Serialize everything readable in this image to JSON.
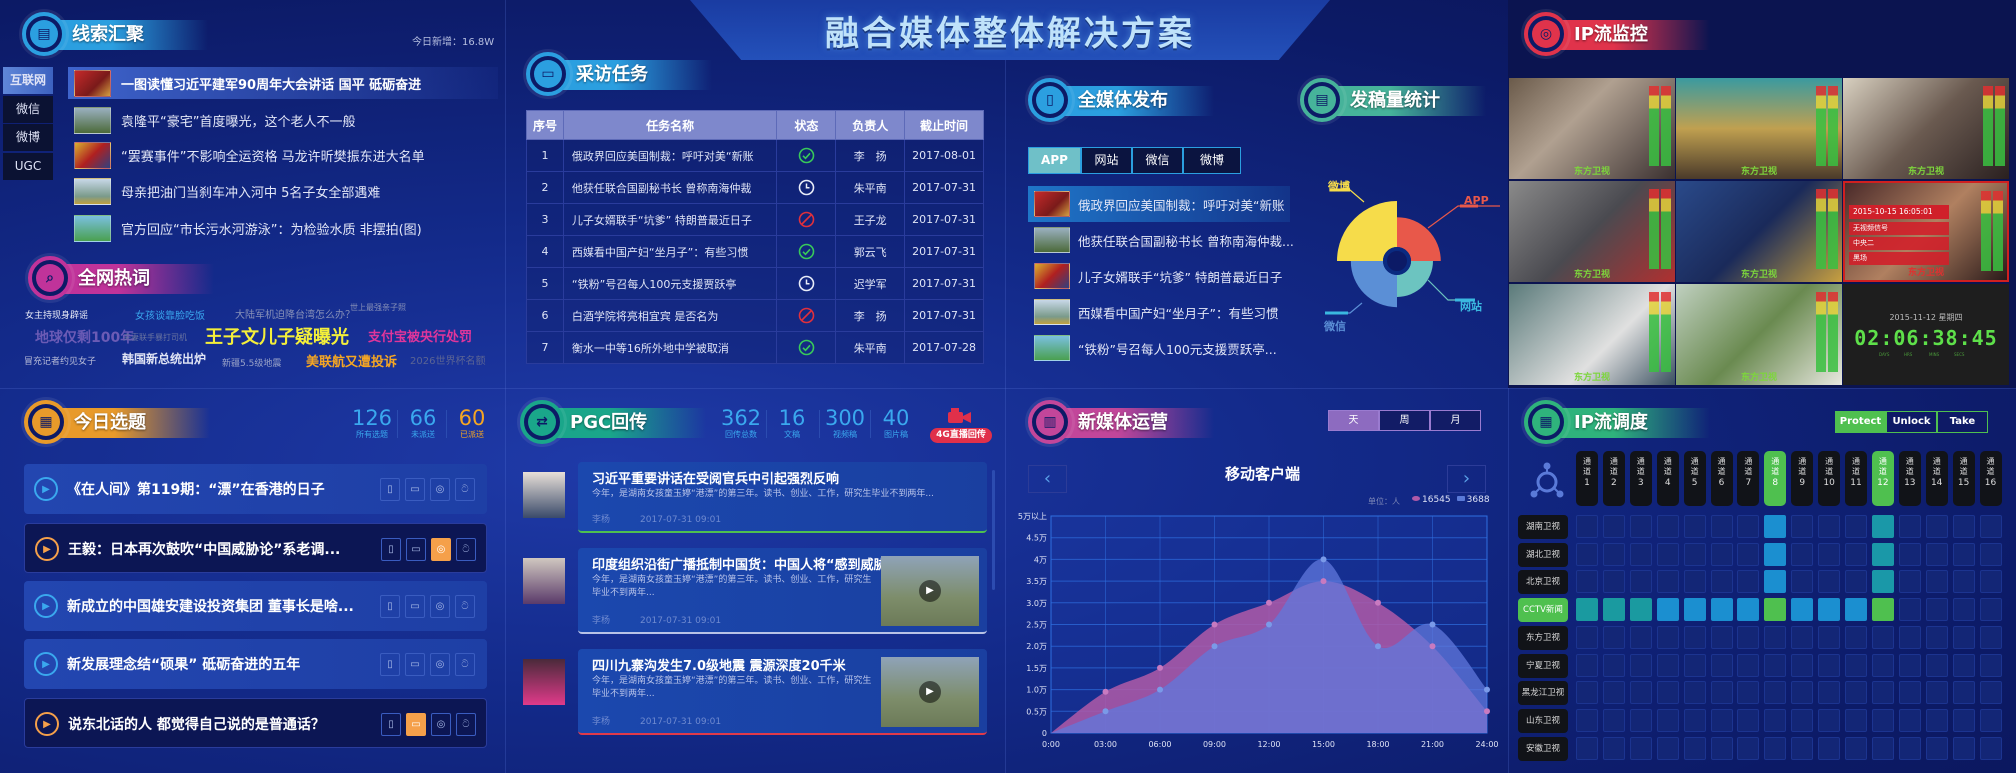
{
  "title": "融合媒体整体解决方案",
  "clues": {
    "title": "线索汇聚",
    "today_new": "今日新增：16.8W",
    "tabs": [
      "互联网",
      "微信",
      "微博",
      "UGC"
    ],
    "active_tab": "互联网",
    "items": [
      "一图读懂习近平建军90周年大会讲话 国平 砥砺奋进",
      "袁隆平“豪宅”首度曝光，这个老人不一般",
      "“罢赛事件”不影响全运资格 马龙许昕樊振东进大名单",
      "母亲把油门当刹车冲入河中 5名子女全部遇难",
      "官方回应“市长污水河游泳”：为检验水质 非摆拍(图)"
    ]
  },
  "hotwords": {
    "title": "全网热词",
    "words": [
      {
        "text": "女主持现身辟谣",
        "color": "#e8eaf6"
      },
      {
        "text": "女孩谈靠脸吃饭",
        "color": "#3aa8ee"
      },
      {
        "text": "大陆军机迫降台湾怎么办？",
        "color": "#8891b8"
      },
      {
        "text": "世上最强亲子照",
        "color": "#8891b8"
      },
      {
        "text": "地球仅剩100年",
        "color": "#6b5bb5"
      },
      {
        "text": "夫妻联手暴打司机",
        "color": "#6a74a0"
      },
      {
        "text": "王子文儿子疑曝光",
        "color": "#f4ef3a"
      },
      {
        "text": "支付宝被央行处罚",
        "color": "#e0359b"
      },
      {
        "text": "冒充记者约见女子",
        "color": "#b8bcd8"
      },
      {
        "text": "韩国新总统出炉",
        "color": "#dfe3f4"
      },
      {
        "text": "新疆5.5级地震",
        "color": "#9aa3c8"
      },
      {
        "text": "美联航又遭投诉",
        "color": "#f5a623"
      },
      {
        "text": "2026世界杯名额",
        "color": "#5b6494"
      }
    ]
  },
  "tasks": {
    "title": "采访任务",
    "headers": [
      "序号",
      "任务名称",
      "状态",
      "负责人",
      "截止时间"
    ],
    "rows": [
      {
        "no": "1",
        "name": "俄政界回应美国制裁：呼吁对美“新账",
        "status": "done",
        "owner": "李　扬",
        "deadline": "2017-08-01"
      },
      {
        "no": "2",
        "name": "他获任联合国副秘书长 曾称南海仲裁",
        "status": "pending",
        "owner": "朱平南",
        "deadline": "2017-07-31"
      },
      {
        "no": "3",
        "name": "儿子女婿联手“坑爹” 特朗普最近日子",
        "status": "blocked",
        "owner": "王子龙",
        "deadline": "2017-07-31"
      },
      {
        "no": "4",
        "name": "西媒看中国产妇“坐月子”：有些习惯",
        "status": "done",
        "owner": "郭云飞",
        "deadline": "2017-07-31"
      },
      {
        "no": "5",
        "name": "“铁粉”号召每人100元支援贾跃亭",
        "status": "pending",
        "owner": "迟学军",
        "deadline": "2017-07-31"
      },
      {
        "no": "6",
        "name": "白酒学院将亮相宜宾 是否名为",
        "status": "blocked",
        "owner": "李　扬",
        "deadline": "2017-07-31"
      },
      {
        "no": "7",
        "name": "衡水一中等16所外地中学被取消",
        "status": "done",
        "owner": "朱平南",
        "deadline": "2017-07-28"
      }
    ],
    "status_colors": {
      "done": "#38c95a",
      "pending": "#e8ecf8",
      "blocked": "#e0303c"
    }
  },
  "publish": {
    "title": "全媒体发布",
    "tabs": [
      "APP",
      "网站",
      "微信",
      "微博"
    ],
    "active_tab": "APP",
    "items": [
      "俄政界回应美国制裁：呼吁对美“新账",
      "他获任联合国副秘书长 曾称南海仲裁...",
      "儿子女婿联手“坑爹” 特朗普最近日子",
      "西媒看中国产妇“坐月子”：有些习惯",
      "“铁粉”号召每人100元支援贾跃亭..."
    ]
  },
  "chart_data": [
    {
      "type": "pie",
      "title": "发稿量统计",
      "variant": "rose",
      "categories": [
        "APP",
        "网站",
        "微信",
        "微博"
      ],
      "values": [
        73,
        60,
        77,
        100
      ],
      "colors": [
        "#e8584a",
        "#6cc4c0",
        "#5b8fd6",
        "#f6dc4a"
      ]
    },
    {
      "type": "area",
      "title": "移动客户端",
      "unit": "单位：人",
      "x": [
        "0:00",
        "03:00",
        "06:00",
        "09:00",
        "12:00",
        "15:00",
        "18:00",
        "21:00",
        "24:00"
      ],
      "y_ticks": [
        "0",
        "0.5万",
        "1.0万",
        "1.5万",
        "2.0万",
        "2.5万",
        "3.0万",
        "3.5万",
        "4万",
        "4.5万",
        "5万以上"
      ],
      "ylim": [
        0,
        5
      ],
      "grid": true,
      "legend_position": "top-right",
      "series": [
        {
          "name": "16545",
          "icon": "eye-icon",
          "color": "#b05aa8",
          "values": [
            0,
            0.95,
            1.5,
            2.5,
            3.0,
            3.5,
            3.0,
            2.0,
            0.5
          ]
        },
        {
          "name": "3688",
          "icon": "message-icon",
          "color": "#5a7ad8",
          "values": [
            0,
            0.5,
            1.0,
            2.0,
            2.5,
            4.0,
            2.0,
            2.5,
            1.0
          ]
        }
      ]
    }
  ],
  "stats": {
    "title": "发稿量统计"
  },
  "monitor": {
    "title": "IP流监控",
    "channel_label": "东方卫视",
    "alarm_tile": 6,
    "alarm": {
      "time": "2015-10-15 16:05:01",
      "lines": [
        "无视频信号",
        "中央二",
        "黑场"
      ]
    },
    "clock": {
      "date": "2015-11-12 星期四",
      "time": "02:06:38:45",
      "units": [
        "DAYS",
        "HRS",
        "MINS",
        "SECS"
      ]
    }
  },
  "topics": {
    "title": "今日选题",
    "stats": [
      {
        "value": "126",
        "label": "所有选题",
        "color": "#3aa8ee"
      },
      {
        "value": "66",
        "label": "未派送",
        "color": "#3aa8ee"
      },
      {
        "value": "60",
        "label": "已派送",
        "color": "#f5a623"
      }
    ],
    "items": [
      {
        "text": "《在人间》第119期：“漂”在香港的日子",
        "state": "unsent",
        "active_channel": ""
      },
      {
        "text": "王毅：日本再次鼓吹“中国威胁论”系老调...",
        "state": "sent",
        "active_channel": "wechat"
      },
      {
        "text": "新成立的中国雄安建设投资集团 董事长是啥...",
        "state": "unsent",
        "active_channel": ""
      },
      {
        "text": "新发展理念结“硕果” 砥砺奋进的五年",
        "state": "unsent",
        "active_channel": ""
      },
      {
        "text": "说东北话的人 都觉得自己说的是普通话？",
        "state": "sent",
        "active_channel": "pc"
      }
    ]
  },
  "pgc": {
    "title": "PGC回传",
    "stats": [
      {
        "value": "362",
        "label": "回传总数"
      },
      {
        "value": "16",
        "label": "文稿"
      },
      {
        "value": "300",
        "label": "视频稿"
      },
      {
        "value": "40",
        "label": "图片稿"
      }
    ],
    "live_button": "4G直播回传",
    "cards": [
      {
        "title": "习近平重要讲话在受阅官兵中引起强烈反响",
        "desc": "今年，是湖南女孩童玉婷“港漂”的第三年。读书、创业、工作，研究生毕业不到两年...",
        "author": "李杨",
        "date": "2017-07-31  09:01",
        "has_video": false,
        "accent": "#4fc04f"
      },
      {
        "title": "印度组织沿街广播抵制中国货：中国人将“感到威胁”",
        "desc": "今年，是湖南女孩童玉婷“港漂”的第三年。读书、创业、工作，研究生毕业不到两年...",
        "author": "李杨",
        "date": "2017-07-31  09:01",
        "has_video": true,
        "accent": "#b8c2e6"
      },
      {
        "title": "四川九寨沟发生7.0级地震 震源深度20千米",
        "desc": "今年，是湖南女孩童玉婷“港漂”的第三年。读书、创业、工作，研究生毕业不到两年...",
        "author": "李杨",
        "date": "2017-07-31  09:01",
        "has_video": true,
        "accent": "#e03a4a"
      }
    ]
  },
  "newmedia": {
    "title": "新媒体运营",
    "tabs": [
      "天",
      "周",
      "月"
    ],
    "active_tab": "天"
  },
  "dispatch": {
    "title": "IP流调度",
    "buttons": [
      "Protect",
      "Unlock",
      "Take"
    ],
    "active_button": "Protect",
    "channel_prefix": "通道",
    "channels": [
      "1",
      "2",
      "3",
      "4",
      "5",
      "6",
      "7",
      "8",
      "9",
      "10",
      "11",
      "12",
      "13",
      "14",
      "15",
      "16"
    ],
    "active_channels": [
      "8",
      "12"
    ],
    "sources": [
      "湖南卫视",
      "湖北卫视",
      "北京卫视",
      "CCTV新闻",
      "东方卫视",
      "宁夏卫视",
      "黑龙江卫视",
      "山东卫视",
      "安徽卫视"
    ],
    "active_source": "CCTV新闻",
    "routes": {
      "湖南卫视": [
        "8",
        "12"
      ],
      "湖北卫视": [
        "8",
        "12"
      ],
      "北京卫视": [
        "8",
        "12"
      ],
      "CCTV新闻": [
        "1",
        "2",
        "3",
        "4",
        "5",
        "6",
        "7",
        "8",
        "9",
        "10",
        "11",
        "12"
      ]
    }
  }
}
